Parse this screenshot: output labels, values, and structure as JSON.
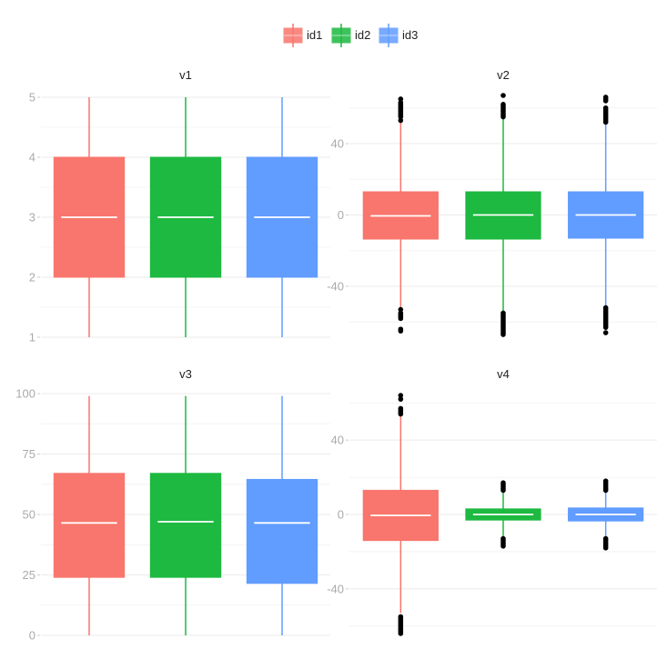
{
  "chart_data": {
    "type": "box",
    "legend": {
      "placement": "top",
      "entries": [
        {
          "name": "id1",
          "color": "#F8766D"
        },
        {
          "name": "id2",
          "color": "#1DB940"
        },
        {
          "name": "id3",
          "color": "#619CFF"
        }
      ]
    },
    "grid": true,
    "panels": [
      {
        "title": "v1",
        "ylim": [
          1,
          5
        ],
        "yticks": [
          "1",
          "2",
          "3",
          "4",
          "5"
        ],
        "boxes": [
          {
            "group": "id1",
            "min": 1,
            "q1": 2,
            "median": 3,
            "q3": 4,
            "max": 5,
            "outliers": []
          },
          {
            "group": "id2",
            "min": 1,
            "q1": 2,
            "median": 3,
            "q3": 4,
            "max": 5,
            "outliers": []
          },
          {
            "group": "id3",
            "min": 1,
            "q1": 2,
            "median": 3,
            "q3": 4,
            "max": 5,
            "outliers": []
          }
        ]
      },
      {
        "title": "v2",
        "ylim": [
          -68,
          67
        ],
        "yticks": [
          "-40",
          "0",
          "40"
        ],
        "ytick_values": [
          -40,
          0,
          40
        ],
        "boxes": [
          {
            "group": "id1",
            "min": -52,
            "q1": -13.5,
            "median": -0.5,
            "q3": 13,
            "max": 52,
            "outliers": [
              53,
              55,
              56,
              57,
              58,
              59,
              60,
              61,
              62,
              63,
              65,
              -53,
              -55,
              -56,
              -57,
              -58,
              -64,
              -65
            ]
          },
          {
            "group": "id2",
            "min": -54,
            "q1": -13.5,
            "median": 0,
            "q3": 13,
            "max": 54,
            "outliers": [
              55,
              56,
              57,
              58,
              59,
              60,
              61,
              62,
              67,
              -55,
              -56,
              -57,
              -58,
              -59,
              -60,
              -61,
              -62,
              -63,
              -64,
              -65,
              -66,
              -67
            ]
          },
          {
            "group": "id3",
            "min": -51,
            "q1": -13,
            "median": 0,
            "q3": 13,
            "max": 51,
            "outliers": [
              52,
              53,
              54,
              55,
              56,
              57,
              58,
              59,
              60,
              64,
              65,
              66,
              -52,
              -53,
              -54,
              -55,
              -56,
              -57,
              -58,
              -59,
              -60,
              -61,
              -62,
              -63,
              -66
            ]
          }
        ]
      },
      {
        "title": "v3",
        "ylim": [
          0,
          100
        ],
        "yticks": [
          "0",
          "25",
          "50",
          "75",
          "100"
        ],
        "ytick_values": [
          0,
          25,
          50,
          75,
          100
        ],
        "boxes": [
          {
            "group": "id1",
            "min": 0,
            "q1": 24,
            "median": 46.5,
            "q3": 67,
            "max": 99,
            "outliers": []
          },
          {
            "group": "id2",
            "min": 0,
            "q1": 24,
            "median": 47,
            "q3": 67,
            "max": 99,
            "outliers": []
          },
          {
            "group": "id3",
            "min": 0,
            "q1": 21.5,
            "median": 46.5,
            "q3": 64.5,
            "max": 99,
            "outliers": []
          }
        ]
      },
      {
        "title": "v4",
        "ylim": [
          -65,
          65
        ],
        "yticks": [
          "-40",
          "0",
          "40"
        ],
        "ytick_values": [
          -40,
          0,
          40
        ],
        "boxes": [
          {
            "group": "id1",
            "min": -53,
            "q1": -14,
            "median": -0.5,
            "q3": 13,
            "max": 53,
            "outliers": [
              54,
              55,
              56,
              57,
              62,
              64,
              -55,
              -56,
              -57,
              -58,
              -59,
              -60,
              -61,
              -62,
              -63,
              -64
            ]
          },
          {
            "group": "id2",
            "min": -12,
            "q1": -3,
            "median": 0,
            "q3": 3,
            "max": 12,
            "outliers": [
              13,
              14,
              15,
              16,
              17,
              -13,
              -14,
              -15,
              -16,
              -17
            ]
          },
          {
            "group": "id3",
            "min": -12,
            "q1": -3.5,
            "median": 0,
            "q3": 3.5,
            "max": 12,
            "outliers": [
              13,
              14,
              15,
              16,
              17,
              18,
              -13,
              -14,
              -15,
              -16,
              -17,
              -18
            ]
          }
        ]
      }
    ]
  }
}
